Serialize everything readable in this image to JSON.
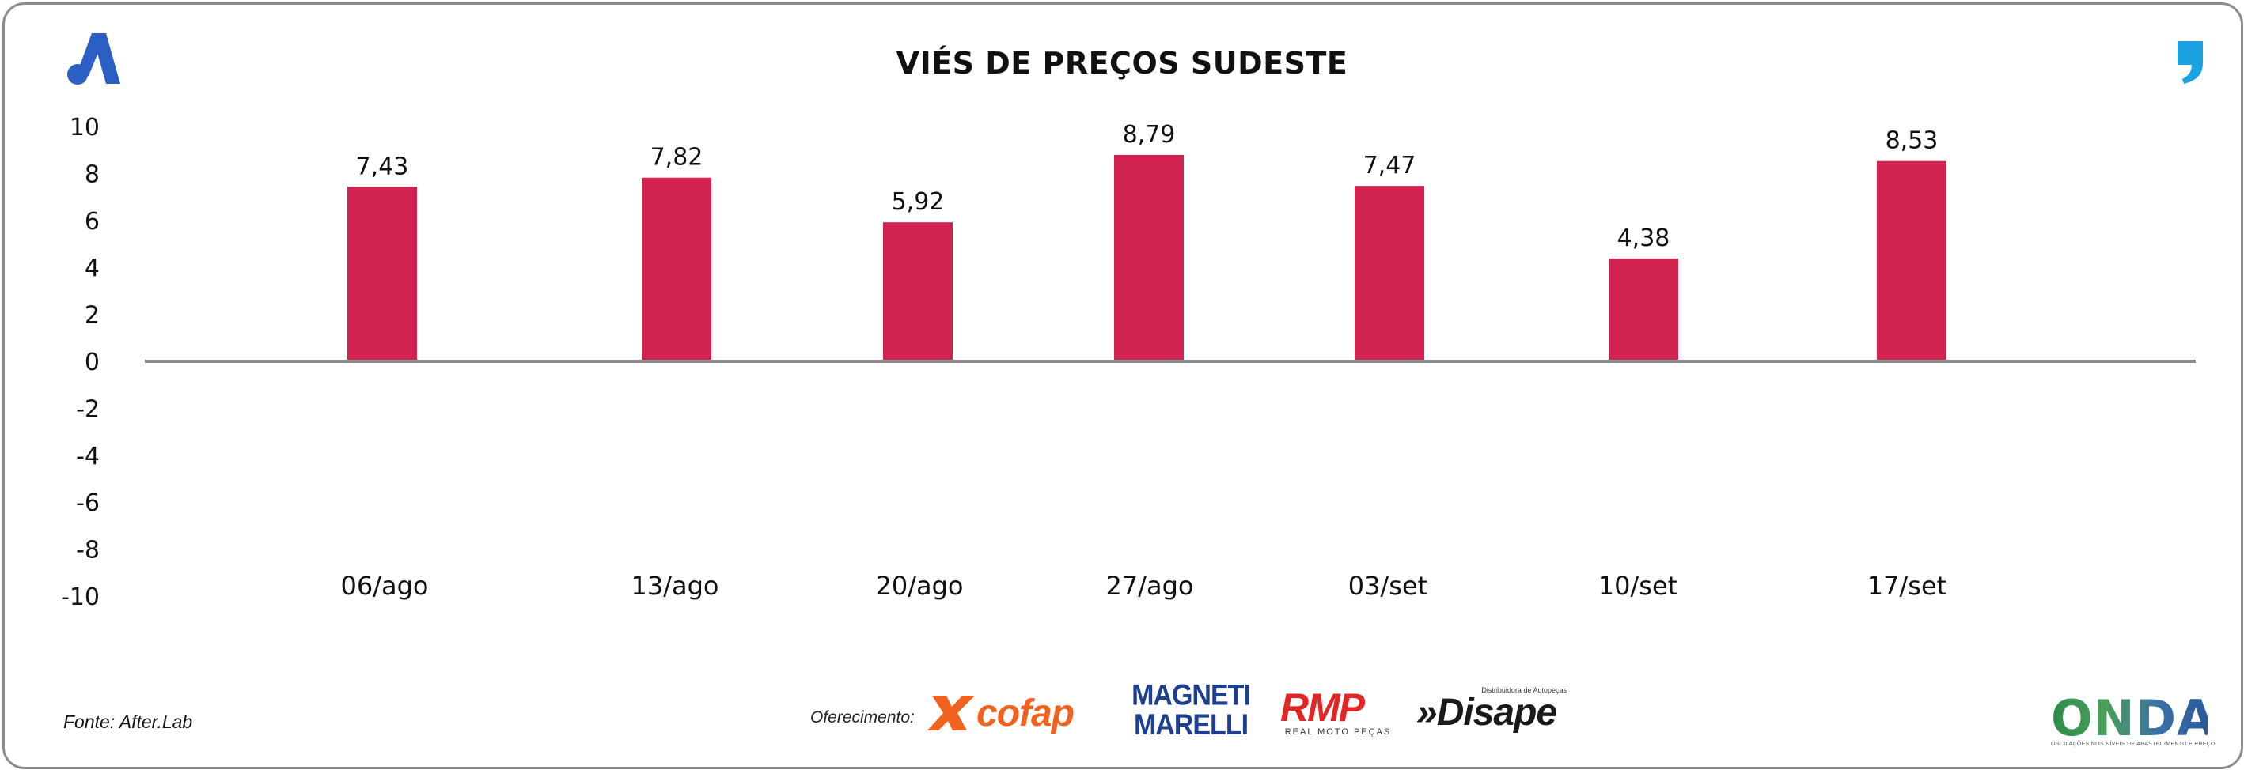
{
  "header": {
    "title": "VIÉS DE PREÇOS SUDESTE"
  },
  "footer": {
    "source": "Fonte: After.Lab",
    "sponsor_label": "Oferecimento:",
    "sponsors": {
      "cofap": "cofap",
      "magneti_line1": "MAGNETI",
      "magneti_line2": "MARELLI",
      "rmp": "RMP",
      "rmp_sub": "REAL MOTO PEÇAS",
      "disape_sub": "Distribuidora de Autopeças",
      "disape": "»Disape"
    },
    "onda": "ONDA",
    "onda_sub": "OSCILAÇÕES NOS NÍVEIS DE ABASTECIMENTO E PREÇO"
  },
  "colors": {
    "bar": "#d22250",
    "axis": "#8c8c8c",
    "logo_blue": "#2b5fc4",
    "quote_blue": "#1aa3e0"
  },
  "icons": {
    "brand": "a-logo-icon",
    "corner": "quote-mark-icon"
  },
  "chart_data": {
    "type": "bar",
    "title": "VIÉS DE PREÇOS SUDESTE",
    "xlabel": "",
    "ylabel": "",
    "ylim": [
      -10,
      10
    ],
    "yticks": [
      "10",
      "8",
      "6",
      "4",
      "2",
      "0",
      "-2",
      "-4",
      "-6",
      "-8",
      "-10"
    ],
    "categories": [
      "06/ago",
      "13/ago",
      "20/ago",
      "27/ago",
      "03/set",
      "10/set",
      "17/set"
    ],
    "values": [
      7.43,
      7.82,
      5.92,
      8.79,
      7.47,
      4.38,
      8.53
    ],
    "value_labels": [
      "7,43",
      "7,82",
      "5,92",
      "8,79",
      "7,47",
      "4,38",
      "8,53"
    ],
    "legend": "none",
    "grid": false
  }
}
